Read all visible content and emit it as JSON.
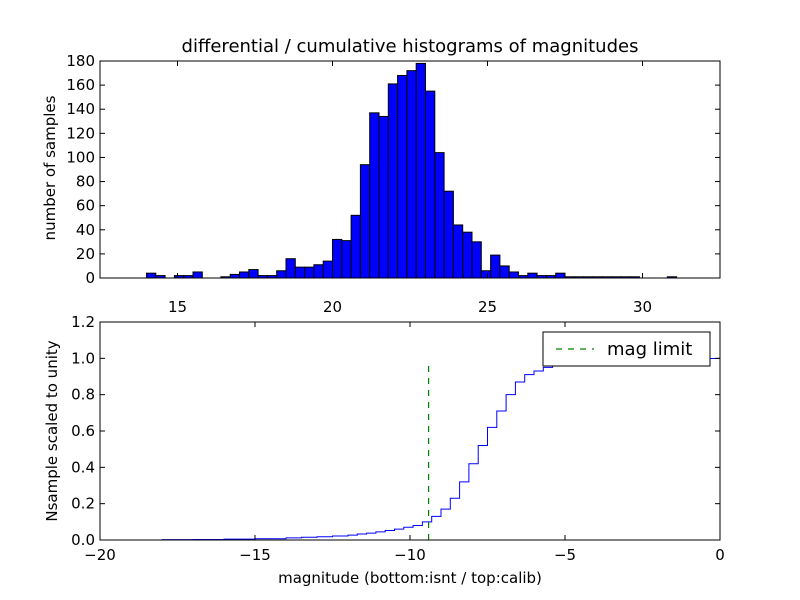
{
  "colors": {
    "hist_fill": "#0000ff",
    "edge": "#000000",
    "cumulative_line": "#0000ff",
    "limit_line": "#008000",
    "background": "#ffffff"
  },
  "chart_data": [
    {
      "type": "bar",
      "title": "differential / cumulative histograms of magnitudes",
      "xlabel": "",
      "ylabel": "number of samples",
      "xlim": [
        12.5,
        32.5
      ],
      "ylim": [
        0,
        180
      ],
      "xticks": [
        15,
        20,
        25,
        30
      ],
      "yticks": [
        0,
        20,
        40,
        60,
        80,
        100,
        120,
        140,
        160,
        180
      ],
      "xtick_labels": [
        "15",
        "20",
        "25",
        "30"
      ],
      "ytick_labels": [
        "0",
        "20",
        "40",
        "60",
        "80",
        "100",
        "120",
        "140",
        "160",
        "180"
      ],
      "bin_edges": [
        12.5,
        12.8,
        13.1,
        13.4,
        13.7,
        14.0,
        14.3,
        14.6,
        14.9,
        15.2,
        15.5,
        15.8,
        16.1,
        16.4,
        16.7,
        17.0,
        17.3,
        17.6,
        17.9,
        18.2,
        18.5,
        18.8,
        19.1,
        19.4,
        19.7,
        20.0,
        20.3,
        20.6,
        20.9,
        21.2,
        21.5,
        21.8,
        22.1,
        22.4,
        22.7,
        23.0,
        23.3,
        23.6,
        23.9,
        24.2,
        24.5,
        24.8,
        25.1,
        25.4,
        25.7,
        26.0,
        26.3,
        26.6,
        26.9,
        27.2,
        27.5,
        27.8,
        28.1,
        28.4,
        28.7,
        29.0,
        29.3,
        29.6,
        29.9,
        30.2,
        30.5,
        30.8,
        31.1,
        31.4,
        31.7,
        32.0,
        32.3
      ],
      "values": [
        0,
        0,
        0,
        0,
        0,
        4,
        2,
        0,
        2,
        2,
        5,
        0,
        0,
        1,
        3,
        5,
        7,
        2,
        2,
        6,
        16,
        9,
        9,
        11,
        14,
        32,
        31,
        52,
        94,
        137,
        134,
        161,
        168,
        172,
        178,
        155,
        104,
        72,
        44,
        38,
        30,
        6,
        19,
        10,
        5,
        2,
        4,
        2,
        2,
        4,
        1,
        1,
        1,
        1,
        1,
        1,
        1,
        1,
        0,
        0,
        0,
        1,
        0,
        0,
        0,
        0
      ]
    },
    {
      "type": "line",
      "xlabel": "magnitude (bottom:isnt / top:calib)",
      "ylabel": "Nsample scaled to unity",
      "xlim": [
        -20,
        0
      ],
      "ylim": [
        0,
        1.2
      ],
      "xticks": [
        -20,
        -15,
        -10,
        -5,
        0
      ],
      "yticks": [
        0.0,
        0.2,
        0.4,
        0.6,
        0.8,
        1.0,
        1.2
      ],
      "xtick_labels": [
        "−20",
        "−15",
        "−10",
        "−5",
        "0"
      ],
      "ytick_labels": [
        "0.0",
        "0.2",
        "0.4",
        "0.6",
        "0.8",
        "1.0",
        "1.2"
      ],
      "legend": {
        "location": "upper right",
        "entries": [
          "mag limit"
        ]
      },
      "series": [
        {
          "style": "step",
          "x": [
            -20.0,
            -18.0,
            -17.0,
            -16.0,
            -15.0,
            -14.0,
            -13.5,
            -13.0,
            -12.5,
            -12.0,
            -11.7,
            -11.4,
            -11.1,
            -10.8,
            -10.5,
            -10.2,
            -9.9,
            -9.6,
            -9.3,
            -9.0,
            -8.7,
            -8.4,
            -8.1,
            -7.8,
            -7.5,
            -7.2,
            -6.9,
            -6.6,
            -6.3,
            -6.0,
            -5.7,
            -5.4,
            -5.1,
            -4.8,
            -4.5,
            -4.2,
            -3.9,
            -3.6,
            -3.3,
            -3.0,
            -2.5,
            -2.0,
            -1.5,
            -1.0,
            -0.5,
            -0.05,
            0.0
          ],
          "y": [
            0.0,
            0.002,
            0.003,
            0.005,
            0.007,
            0.012,
            0.015,
            0.018,
            0.022,
            0.027,
            0.033,
            0.038,
            0.045,
            0.052,
            0.06,
            0.07,
            0.08,
            0.1,
            0.13,
            0.17,
            0.23,
            0.32,
            0.42,
            0.52,
            0.62,
            0.71,
            0.8,
            0.87,
            0.91,
            0.93,
            0.95,
            0.96,
            0.965,
            0.97,
            0.975,
            0.98,
            0.985,
            0.988,
            0.99,
            0.992,
            0.994,
            0.996,
            0.997,
            0.998,
            0.999,
            1.0,
            0.0
          ]
        },
        {
          "name": "mag limit",
          "style": "dashed",
          "x": [
            -9.4,
            -9.4
          ],
          "y": [
            0.0,
            0.97
          ]
        }
      ]
    }
  ]
}
